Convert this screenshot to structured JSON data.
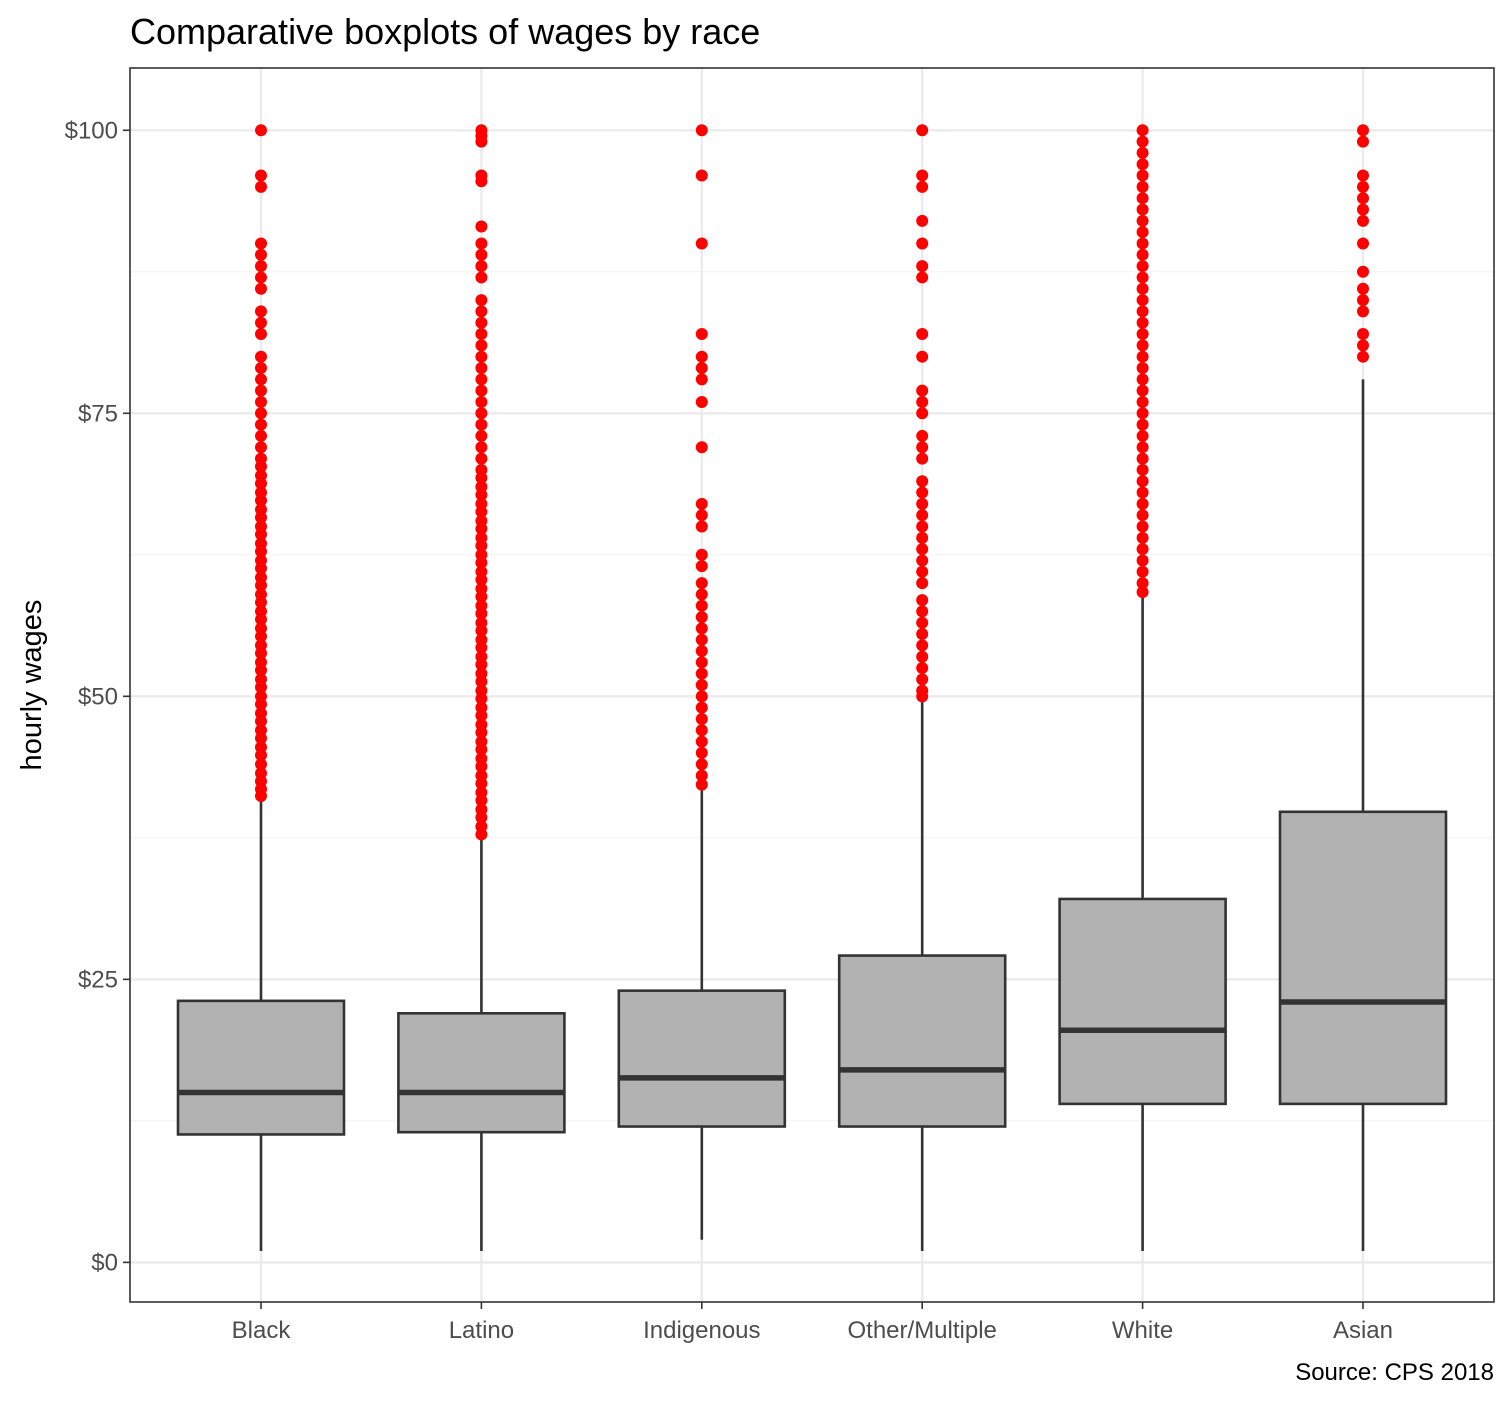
{
  "chart_data": {
    "type": "boxplot",
    "title": "Comparative boxplots of wages by race",
    "xlabel": "",
    "ylabel": "hourly wages",
    "caption": "Source: CPS 2018",
    "ylim": [
      -3.5,
      105.5
    ],
    "y_ticks": [
      0,
      25,
      50,
      75,
      100
    ],
    "y_tick_labels": [
      "$0",
      "$25",
      "$50",
      "$75",
      "$100"
    ],
    "y_minor_ticks": [
      12.5,
      37.5,
      62.5,
      87.5
    ],
    "grid": true,
    "categories": [
      "Black",
      "Latino",
      "Indigenous",
      "Other/Multiple",
      "White",
      "Asian"
    ],
    "boxes": [
      {
        "category": "Black",
        "whisker_low": 1.0,
        "q1": 11.3,
        "median": 15.0,
        "q3": 23.1,
        "whisker_high": 40.7,
        "outliers": [
          41.2,
          41.8,
          42.5,
          43.2,
          44.0,
          44.8,
          45.5,
          46.3,
          47.0,
          47.8,
          48.5,
          49.3,
          50.0,
          50.8,
          51.5,
          52.3,
          53.0,
          53.8,
          54.5,
          55.3,
          56.0,
          56.8,
          57.5,
          58.3,
          59.0,
          59.8,
          60.5,
          61.3,
          62.0,
          62.8,
          63.5,
          64.3,
          65.0,
          65.8,
          66.5,
          67.3,
          68.0,
          68.8,
          69.5,
          70.3,
          71.0,
          72.0,
          73.0,
          74.0,
          75.0,
          76.0,
          77.0,
          78.0,
          79.0,
          80.0,
          82.0,
          83.0,
          84.0,
          86.0,
          87.0,
          88.0,
          89.0,
          90.0,
          95.0,
          96.0,
          100.0
        ]
      },
      {
        "category": "Latino",
        "whisker_low": 1.0,
        "q1": 11.5,
        "median": 15.0,
        "q3": 22.0,
        "whisker_high": 37.5,
        "outliers": [
          37.8,
          38.5,
          39.3,
          40.0,
          40.8,
          41.5,
          42.3,
          43.0,
          43.8,
          44.5,
          45.3,
          46.0,
          46.8,
          47.5,
          48.3,
          49.0,
          49.8,
          50.5,
          51.3,
          52.0,
          52.8,
          53.5,
          54.3,
          55.0,
          55.8,
          56.5,
          57.3,
          58.0,
          58.8,
          59.5,
          60.3,
          61.0,
          61.8,
          62.5,
          63.3,
          64.0,
          64.8,
          65.5,
          66.3,
          67.0,
          67.8,
          68.5,
          69.3,
          70.0,
          71.0,
          72.0,
          73.0,
          74.0,
          75.0,
          76.0,
          77.0,
          78.0,
          79.0,
          80.0,
          81.0,
          82.0,
          83.0,
          84.0,
          85.0,
          87.0,
          88.0,
          89.0,
          90.0,
          91.5,
          95.5,
          96.0,
          99.0,
          99.5,
          100.0
        ]
      },
      {
        "category": "Indigenous",
        "whisker_low": 2.0,
        "q1": 12.0,
        "median": 16.3,
        "q3": 24.0,
        "whisker_high": 42.0,
        "outliers": [
          42.2,
          43.0,
          44.0,
          45.0,
          46.0,
          47.0,
          48.0,
          49.0,
          50.0,
          51.0,
          52.0,
          53.0,
          54.0,
          55.0,
          56.0,
          57.0,
          58.0,
          59.0,
          60.0,
          61.5,
          62.5,
          65.0,
          66.0,
          67.0,
          72.0,
          76.0,
          78.0,
          79.0,
          80.0,
          82.0,
          90.0,
          96.0,
          100.0
        ]
      },
      {
        "category": "Other/Multiple",
        "whisker_low": 1.0,
        "q1": 12.0,
        "median": 17.0,
        "q3": 27.1,
        "whisker_high": 49.8,
        "outliers": [
          50.0,
          50.5,
          51.5,
          52.5,
          53.5,
          54.5,
          55.5,
          56.5,
          57.5,
          58.5,
          60.0,
          61.0,
          62.0,
          63.0,
          64.0,
          65.0,
          66.0,
          67.0,
          68.0,
          69.0,
          71.0,
          72.0,
          73.0,
          75.0,
          76.0,
          77.0,
          80.0,
          82.0,
          87.0,
          88.0,
          90.0,
          92.0,
          95.0,
          96.0,
          100.0
        ]
      },
      {
        "category": "White",
        "whisker_low": 1.0,
        "q1": 14.0,
        "median": 20.5,
        "q3": 32.1,
        "whisker_high": 59.0,
        "outliers": [
          59.2,
          60.0,
          61.0,
          62.0,
          63.0,
          64.0,
          65.0,
          66.0,
          67.0,
          68.0,
          69.0,
          70.0,
          71.0,
          72.0,
          73.0,
          74.0,
          75.0,
          76.0,
          77.0,
          78.0,
          79.0,
          80.0,
          81.0,
          82.0,
          83.0,
          84.0,
          85.0,
          86.0,
          87.0,
          88.0,
          89.0,
          90.0,
          91.0,
          92.0,
          93.0,
          94.0,
          95.0,
          96.0,
          97.0,
          98.0,
          99.0,
          100.0
        ]
      },
      {
        "category": "Asian",
        "whisker_low": 1.0,
        "q1": 14.0,
        "median": 23.0,
        "q3": 39.8,
        "whisker_high": 78.0,
        "outliers": [
          80.0,
          81.0,
          82.0,
          84.0,
          85.0,
          86.0,
          87.5,
          90.0,
          92.0,
          93.0,
          94.0,
          95.0,
          96.0,
          99.0,
          100.0
        ]
      }
    ],
    "colors": {
      "box_fill": "#b2b2b2",
      "box_stroke": "#333333",
      "outlier": "#ff0000",
      "grid_major": "#ebebeb",
      "grid_minor": "#f4f4f4",
      "panel_border": "#333333"
    }
  }
}
